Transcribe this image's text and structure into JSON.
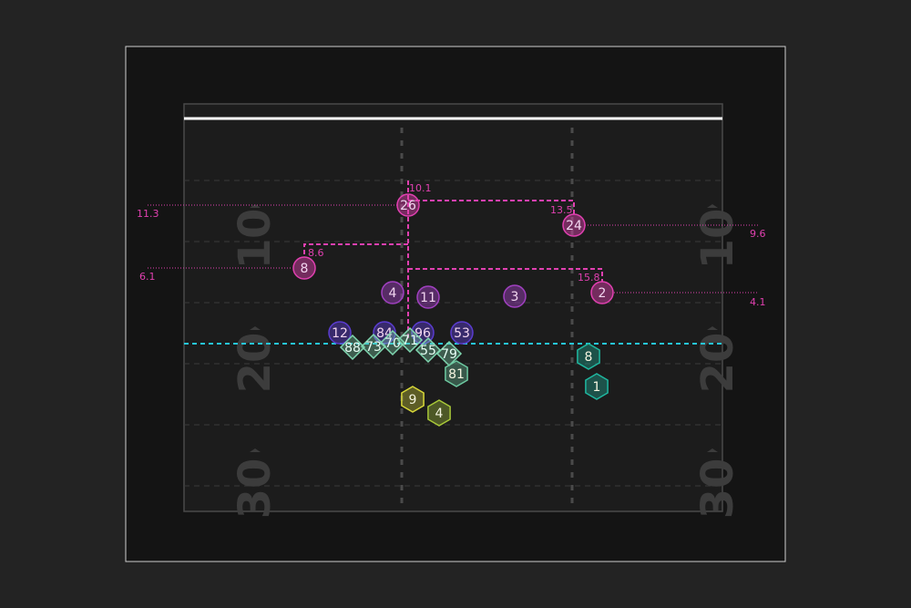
{
  "field": {
    "yard_numbers": [
      "10",
      "20",
      "30"
    ],
    "colors": {
      "background": "#232323",
      "panel": "#141414",
      "field": "#1c1c1c",
      "boundary": "#9a9a9a",
      "field_border": "#4a4a4a",
      "line_of_scrimmage": "#26c6da",
      "first_down_line": "#ffffff",
      "yard_number": "#3c3c3c"
    }
  },
  "defense": [
    {
      "number": "26",
      "color": "#e040b0"
    },
    {
      "number": "24",
      "color": "#e040b0"
    },
    {
      "number": "8",
      "color": "#e040b0"
    },
    {
      "number": "2",
      "color": "#e040b0"
    },
    {
      "number": "4",
      "color": "#a040c0"
    },
    {
      "number": "11",
      "color": "#a040c0"
    },
    {
      "number": "3",
      "color": "#a040c0"
    },
    {
      "number": "12",
      "color": "#5a3ccf"
    },
    {
      "number": "84",
      "color": "#5a3ccf"
    },
    {
      "number": "96",
      "color": "#5a3ccf"
    },
    {
      "number": "53",
      "color": "#5a3ccf"
    }
  ],
  "offense_line": [
    {
      "number": "88",
      "color": "#7fd6b0"
    },
    {
      "number": "73",
      "color": "#7fd6b0"
    },
    {
      "number": "70",
      "color": "#7fd6b0"
    },
    {
      "number": "71",
      "color": "#7fd6b0"
    },
    {
      "number": "55",
      "color": "#7fd6b0"
    },
    {
      "number": "79",
      "color": "#7fd6b0"
    }
  ],
  "offense_skill": [
    {
      "number": "81",
      "color": "#6dc8a0"
    },
    {
      "number": "8",
      "color": "#1fb8a0"
    },
    {
      "number": "1",
      "color": "#1fb8a0"
    },
    {
      "number": "9",
      "color": "#d8d838"
    },
    {
      "number": "4",
      "color": "#a8c838"
    }
  ],
  "distance_labels": {
    "safety_left": "11.3",
    "safety_right": "9.6",
    "corner_left": "6.1",
    "corner_right": "4.1",
    "gap_top": "10.1",
    "gap_right_top": "13.5",
    "gap_left": "8.6",
    "gap_right_low": "15.8"
  },
  "annotation_color": "#e040b0"
}
